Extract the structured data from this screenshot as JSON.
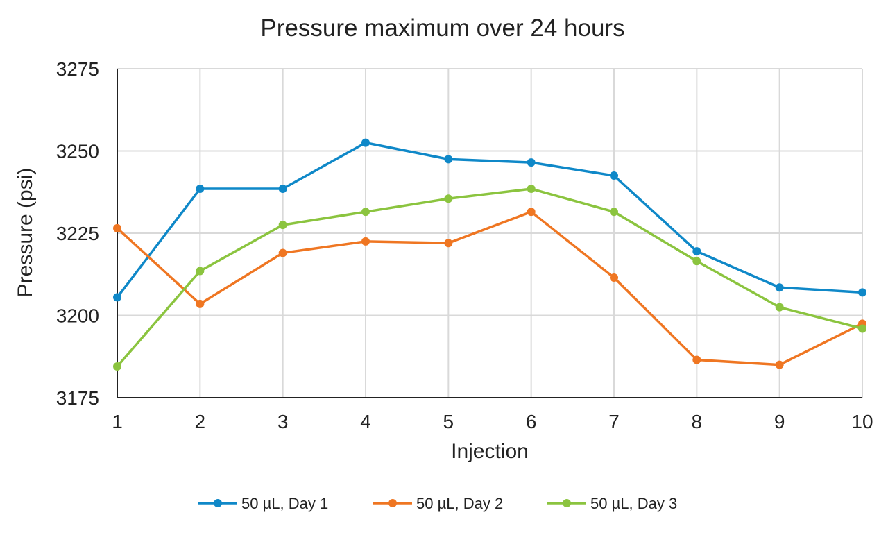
{
  "chart_data": {
    "type": "line",
    "title": "Pressure maximum over 24 hours",
    "xlabel": "Injection",
    "ylabel": "Pressure (psi)",
    "x": [
      1,
      2,
      3,
      4,
      5,
      6,
      7,
      8,
      9,
      10
    ],
    "x_tick_labels": [
      "1",
      "2",
      "3",
      "4",
      "5",
      "6",
      "7",
      "8",
      "9",
      "10"
    ],
    "ylim": [
      3175,
      3275
    ],
    "y_ticks": [
      3175,
      3200,
      3225,
      3250,
      3275
    ],
    "y_tick_labels": [
      "3175",
      "3200",
      "3225",
      "3250",
      "3275"
    ],
    "grid": true,
    "legend_position": "bottom",
    "series": [
      {
        "name": "50 µL, Day 1",
        "color": "#0f88c8",
        "values": [
          3205.5,
          3238.5,
          3238.5,
          3252.5,
          3247.5,
          3246.5,
          3242.5,
          3219.5,
          3208.5,
          3207.0
        ]
      },
      {
        "name": "50 µL, Day 2",
        "color": "#ef7622",
        "values": [
          3226.5,
          3203.5,
          3219.0,
          3222.5,
          3222.0,
          3231.5,
          3211.5,
          3186.5,
          3185.0,
          3197.5
        ]
      },
      {
        "name": "50 µL, Day 3",
        "color": "#8bc43f",
        "values": [
          3184.5,
          3213.5,
          3227.5,
          3231.5,
          3235.5,
          3238.5,
          3231.5,
          3216.5,
          3202.5,
          3196.0
        ]
      }
    ]
  }
}
